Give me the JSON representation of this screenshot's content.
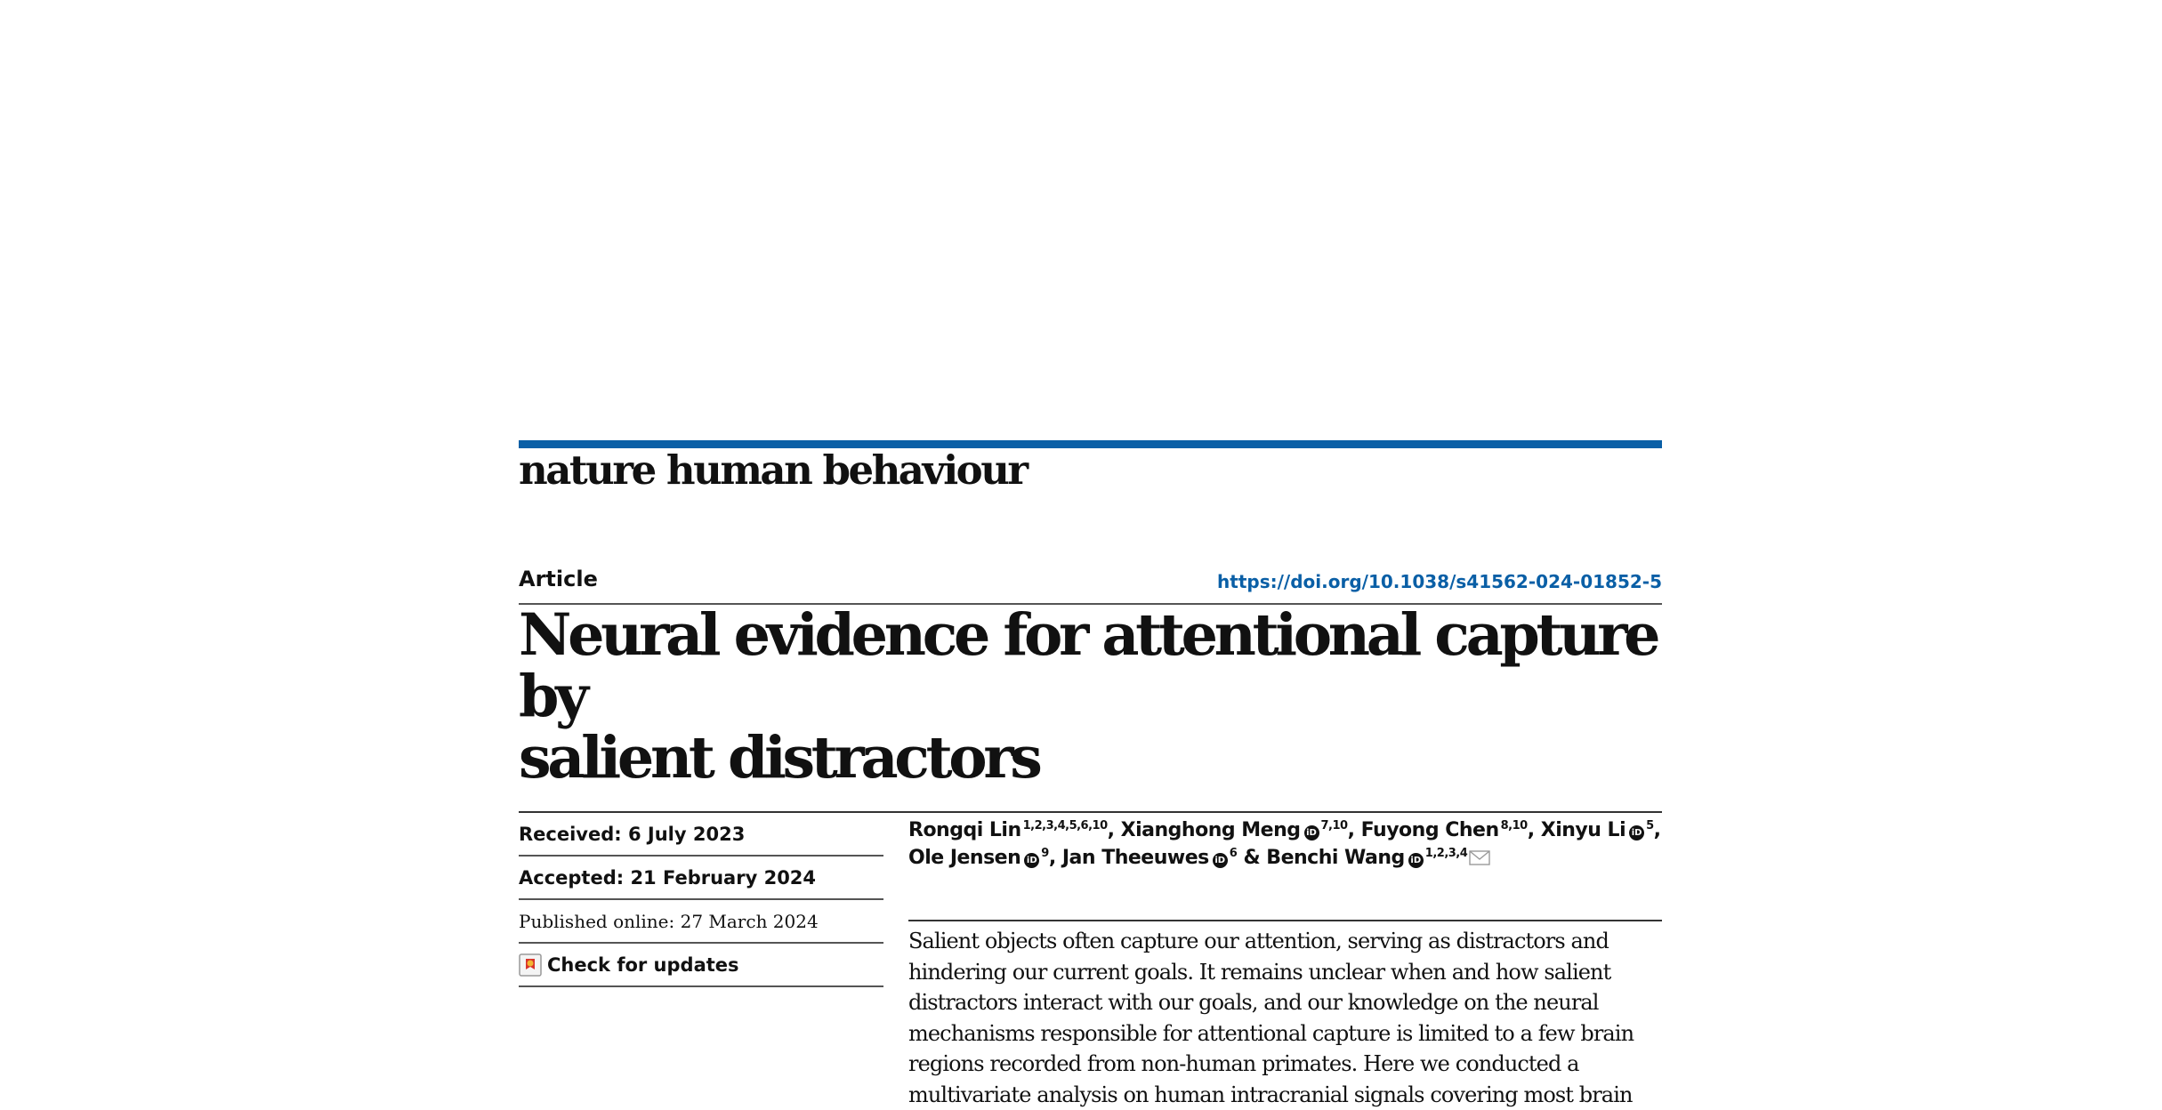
{
  "journal": {
    "name": "nature human behaviour",
    "accent_color": "#0a5fa6"
  },
  "article": {
    "type": "Article",
    "doi": "https://doi.org/10.1038/s41562-024-01852-5",
    "title_line1": "Neural evidence for attentional capture by",
    "title_line2": "salient distractors"
  },
  "dates": {
    "received": "Received: 6 July 2023",
    "accepted": "Accepted: 21 February 2024",
    "published": "Published online: 27 March 2024",
    "check_updates": "Check for updates"
  },
  "authors": [
    {
      "name": "Rongqi Lin",
      "sup": "1,2,3,4,5,6,10",
      "orcid": false,
      "sep": ", "
    },
    {
      "name": "Xianghong Meng",
      "sup": "7,10",
      "orcid": true,
      "sep": ", "
    },
    {
      "name": "Fuyong Chen",
      "sup": "8,10",
      "orcid": false,
      "sep": ", "
    },
    {
      "name": "Xinyu Li",
      "sup": "5",
      "orcid": true,
      "sep": ","
    },
    {
      "name": "Ole Jensen",
      "sup": "9",
      "orcid": true,
      "sep": ", "
    },
    {
      "name": "Jan Theeuwes",
      "sup": "6",
      "orcid": true,
      "sep": " & "
    },
    {
      "name": "Benchi Wang",
      "sup": "1,2,3,4",
      "orcid": true,
      "sep": ""
    }
  ],
  "abstract_lines": [
    "Salient objects often capture our attention, serving as distractors and",
    "hindering our current goals. It remains unclear when and how salient",
    "distractors interact with our goals, and our knowledge on the neural",
    "mechanisms responsible for attentional capture is limited to a few brain",
    "regions recorded from non-human primates. Here we conducted a",
    "multivariate analysis on human intracranial signals covering most brain"
  ],
  "icons": {
    "orcid": "orcid-icon",
    "mail": "mail-icon",
    "crossmark": "crossmark-icon"
  }
}
